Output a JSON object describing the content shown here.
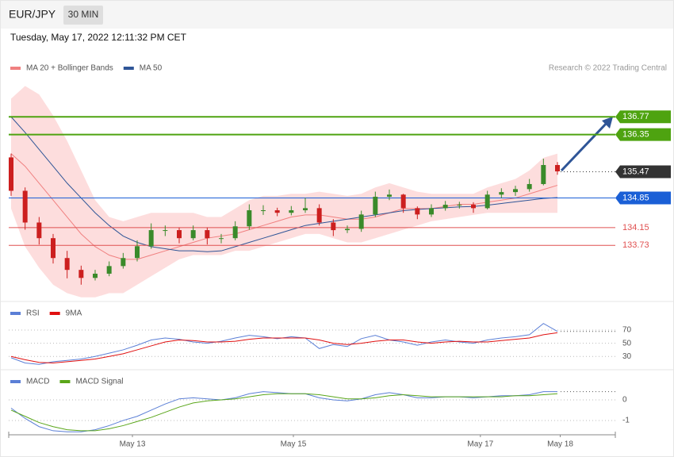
{
  "header": {
    "symbol": "EUR/JPY",
    "interval": "30 MIN",
    "datetime": "Tuesday, May 17, 2022 12:11:32 PM CET"
  },
  "chart_data": [
    {
      "type": "candlestick",
      "legend": [
        {
          "name": "MA 20 + Bollinger Bands",
          "color": "#f08080"
        },
        {
          "name": "MA 50",
          "color": "#2f5597"
        }
      ],
      "credit": "Research © 2022 Trading Central",
      "up_color": "#3a8a2a",
      "down_color": "#cc1f1f",
      "ylim": [
        132.44,
        137.75
      ],
      "open": [
        135.81,
        135.02,
        134.27,
        133.9,
        133.43,
        133.15,
        132.96,
        133.06,
        133.24,
        133.43,
        133.71,
        134.09,
        134.09,
        133.9,
        134.09,
        133.9,
        133.9,
        134.18,
        134.56,
        134.56,
        134.5,
        134.56,
        134.61,
        134.27,
        134.09,
        134.12,
        134.46,
        134.88,
        134.93,
        134.61,
        134.46,
        134.61,
        134.69,
        134.69,
        134.61,
        134.93,
        134.99,
        135.06,
        135.18,
        135.63
      ],
      "close": [
        135.02,
        134.27,
        133.9,
        133.43,
        133.15,
        132.96,
        133.06,
        133.24,
        133.43,
        133.71,
        134.09,
        134.09,
        133.9,
        134.09,
        133.9,
        133.9,
        134.18,
        134.56,
        134.56,
        134.5,
        134.56,
        134.61,
        134.27,
        134.09,
        134.12,
        134.46,
        134.88,
        134.93,
        134.61,
        134.46,
        134.61,
        134.69,
        134.69,
        134.61,
        134.93,
        134.99,
        135.06,
        135.18,
        135.63,
        135.48
      ],
      "high": [
        135.9,
        135.1,
        134.4,
        134.0,
        133.6,
        133.25,
        133.15,
        133.35,
        133.55,
        133.85,
        134.25,
        134.2,
        134.15,
        134.2,
        134.15,
        134.0,
        134.3,
        134.7,
        134.68,
        134.62,
        134.66,
        134.85,
        134.7,
        134.35,
        134.2,
        134.55,
        135.0,
        135.05,
        134.95,
        134.65,
        134.7,
        134.78,
        134.76,
        134.75,
        135.02,
        135.08,
        135.14,
        135.3,
        135.78,
        135.7
      ],
      "low": [
        134.9,
        134.1,
        133.75,
        133.3,
        132.95,
        132.8,
        132.9,
        133.0,
        133.18,
        133.35,
        133.65,
        133.95,
        133.78,
        133.85,
        133.75,
        133.78,
        133.85,
        134.1,
        134.45,
        134.42,
        134.44,
        134.5,
        134.2,
        133.95,
        134.02,
        134.05,
        134.4,
        134.8,
        134.5,
        134.35,
        134.4,
        134.55,
        134.6,
        134.5,
        134.58,
        134.85,
        134.9,
        135.0,
        135.15,
        135.4
      ],
      "ma20": [
        135.9,
        135.6,
        135.2,
        134.8,
        134.4,
        134.0,
        133.7,
        133.5,
        133.4,
        133.4,
        133.5,
        133.6,
        133.7,
        133.8,
        133.9,
        133.95,
        134.0,
        134.1,
        134.2,
        134.3,
        134.4,
        134.45,
        134.45,
        134.4,
        134.35,
        134.35,
        134.4,
        134.5,
        134.6,
        134.6,
        134.6,
        134.65,
        134.7,
        134.7,
        134.75,
        134.8,
        134.85,
        134.95,
        135.05,
        135.15
      ],
      "bb_upper": [
        137.2,
        137.5,
        137.3,
        136.8,
        136.2,
        135.5,
        134.8,
        134.4,
        134.3,
        134.4,
        134.5,
        134.5,
        134.5,
        134.5,
        134.4,
        134.4,
        134.6,
        134.8,
        134.9,
        134.9,
        134.95,
        134.95,
        135.0,
        134.95,
        134.9,
        134.95,
        135.1,
        135.2,
        135.1,
        135.0,
        134.95,
        134.95,
        134.95,
        134.95,
        135.1,
        135.2,
        135.3,
        135.5,
        135.8,
        135.9
      ],
      "bb_lower": [
        134.6,
        133.7,
        133.2,
        132.8,
        132.6,
        132.5,
        132.5,
        132.6,
        132.6,
        132.8,
        133.0,
        133.2,
        133.4,
        133.5,
        133.5,
        133.5,
        133.6,
        133.6,
        133.7,
        133.8,
        133.9,
        134.0,
        134.0,
        133.9,
        133.8,
        133.8,
        133.9,
        134.0,
        134.1,
        134.2,
        134.3,
        134.35,
        134.4,
        134.45,
        134.5,
        134.5,
        134.5,
        134.5,
        134.5,
        134.5
      ],
      "ma50": [
        136.77,
        136.4,
        136.0,
        135.6,
        135.2,
        134.85,
        134.5,
        134.2,
        133.95,
        133.8,
        133.7,
        133.65,
        133.6,
        133.6,
        133.58,
        133.6,
        133.7,
        133.8,
        133.9,
        134.0,
        134.1,
        134.2,
        134.25,
        134.3,
        134.35,
        134.4,
        134.45,
        134.5,
        134.55,
        134.58,
        134.6,
        134.62,
        134.64,
        134.65,
        134.68,
        134.72,
        134.76,
        134.8,
        134.84,
        134.86
      ],
      "levels": [
        {
          "value": 136.77,
          "color": "#4ea310",
          "style": "tag"
        },
        {
          "value": 136.35,
          "color": "#4ea310",
          "style": "tag"
        },
        {
          "value": 135.47,
          "color": "#333333",
          "style": "dotted"
        },
        {
          "value": 134.85,
          "color": "#1a5fd6",
          "style": "tag"
        },
        {
          "value": 134.15,
          "color": "#e05050",
          "style": "text"
        },
        {
          "value": 133.73,
          "color": "#e05050",
          "style": "text"
        }
      ]
    },
    {
      "type": "line",
      "ylim": [
        11,
        111
      ],
      "yticks": [
        70,
        50,
        30
      ],
      "series": [
        {
          "name": "RSI",
          "color": "#5b7fd6",
          "values": [
            28,
            20,
            18,
            22,
            24,
            26,
            30,
            35,
            40,
            47,
            55,
            58,
            56,
            52,
            50,
            53,
            58,
            62,
            60,
            57,
            60,
            58,
            42,
            48,
            45,
            57,
            62,
            55,
            52,
            47,
            52,
            55,
            52,
            50,
            55,
            58,
            60,
            63,
            80,
            68
          ]
        },
        {
          "name": "9MA",
          "color": "#e01010",
          "values": [
            30,
            25,
            21,
            20,
            22,
            24,
            26,
            30,
            34,
            40,
            46,
            52,
            55,
            54,
            52,
            52,
            53,
            56,
            58,
            58,
            58,
            58,
            55,
            50,
            48,
            50,
            53,
            55,
            55,
            52,
            50,
            52,
            53,
            52,
            52,
            54,
            56,
            58,
            63,
            66
          ]
        }
      ]
    },
    {
      "type": "line",
      "ylim": [
        -1.58,
        1.31
      ],
      "yticks": [
        0,
        -1
      ],
      "series": [
        {
          "name": "MACD",
          "color": "#5b7fd6",
          "values": [
            -0.4,
            -0.9,
            -1.3,
            -1.5,
            -1.55,
            -1.55,
            -1.45,
            -1.25,
            -1.0,
            -0.8,
            -0.5,
            -0.2,
            0.05,
            0.1,
            0.05,
            0.0,
            0.1,
            0.3,
            0.4,
            0.35,
            0.3,
            0.3,
            0.1,
            0.0,
            -0.05,
            0.05,
            0.25,
            0.35,
            0.25,
            0.1,
            0.1,
            0.15,
            0.15,
            0.1,
            0.15,
            0.2,
            0.2,
            0.25,
            0.4,
            0.4
          ]
        },
        {
          "name": "MACD Signal",
          "color": "#5aa61a",
          "values": [
            -0.5,
            -0.8,
            -1.1,
            -1.3,
            -1.45,
            -1.5,
            -1.5,
            -1.4,
            -1.25,
            -1.05,
            -0.85,
            -0.6,
            -0.35,
            -0.15,
            -0.05,
            0.0,
            0.05,
            0.15,
            0.25,
            0.3,
            0.3,
            0.3,
            0.25,
            0.15,
            0.05,
            0.05,
            0.1,
            0.2,
            0.25,
            0.2,
            0.15,
            0.15,
            0.15,
            0.15,
            0.15,
            0.15,
            0.2,
            0.2,
            0.25,
            0.3
          ]
        }
      ],
      "xlim": [
        0,
        39
      ],
      "xticks": [
        {
          "value": 8.66,
          "label": "May 13"
        },
        {
          "value": 20.15,
          "label": "May 15"
        },
        {
          "value": 33.5,
          "label": "May 17"
        },
        {
          "value": 39.2,
          "label": "May 18"
        }
      ]
    }
  ]
}
